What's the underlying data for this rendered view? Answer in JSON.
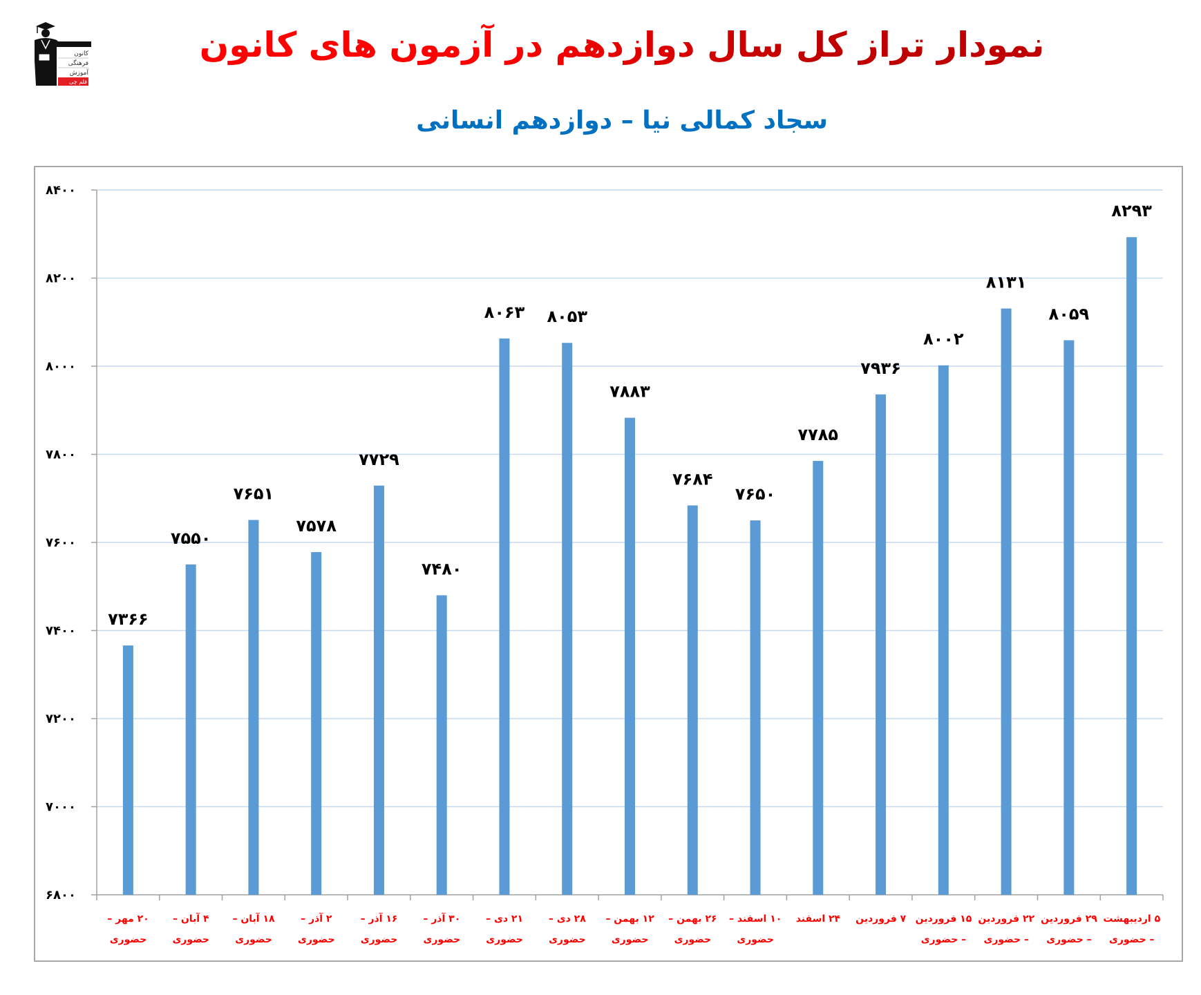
{
  "header": {
    "title": "نمودار تراز کل سال دوازدهم در آزمون های کانون",
    "subtitle": "سجاد کمالی نیا – دوازدهم انسانی",
    "logo": {
      "icon": "graduate-figure-icon",
      "lines": [
        "کانون",
        "فرهنگی",
        "آموزش",
        "قلم چی"
      ]
    }
  },
  "colors": {
    "title_dark": "#C00000",
    "title_bright": "#FF0000",
    "subtitle": "#0070C0",
    "bar": "#5B9BD5",
    "gridline": "#C5D9F1",
    "axis": "#A0A0A0",
    "x_label": "#FF0000",
    "data_label": "#000000"
  },
  "chart_data": {
    "type": "bar",
    "title": "نمودار تراز کل سال دوازدهم در آزمون های کانون",
    "subtitle": "سجاد کمالی نیا – دوازدهم انسانی",
    "xlabel": "",
    "ylabel": "",
    "ylim": [
      6800,
      8400
    ],
    "y_ticks": [
      6800,
      7000,
      7200,
      7400,
      7600,
      7800,
      8000,
      8200,
      8400
    ],
    "y_tick_labels": [
      "۶۸۰۰",
      "۷۰۰۰",
      "۷۲۰۰",
      "۷۴۰۰",
      "۷۶۰۰",
      "۷۸۰۰",
      "۸۰۰۰",
      "۸۲۰۰",
      "۸۴۰۰"
    ],
    "grid": true,
    "legend": "none",
    "categories": [
      "۲۰ مهر – حضوری",
      "۴ آبان – حضوری",
      "۱۸ آبان – حضوری",
      "۲ آذر – حضوری",
      "۱۶ آذر – حضوری",
      "۳۰ آذر – حضوری",
      "۲۱ دی – حضوری",
      "۲۸ دی – حضوری",
      "۱۲ بهمن – حضوری",
      "۲۶ بهمن – حضوری",
      "۱۰ اسفند – حضوری",
      "۲۴ اسفند",
      "۷ فروردین",
      "۱۵ فروردین – حضوری",
      "۲۲ فروردین – حضوری",
      "۲۹ فروردین – حضوری",
      "۵ اردیبهشت – حضوری"
    ],
    "category_lines": [
      [
        "۲۰ مهر –",
        "حضوری"
      ],
      [
        "۴ آبان –",
        "حضوری"
      ],
      [
        "۱۸ آبان –",
        "حضوری"
      ],
      [
        "۲ آذر –",
        "حضوری"
      ],
      [
        "۱۶ آذر –",
        "حضوری"
      ],
      [
        "۳۰ آذر –",
        "حضوری"
      ],
      [
        "۲۱ دی –",
        "حضوری"
      ],
      [
        "۲۸ دی –",
        "حضوری"
      ],
      [
        "۱۲ بهمن –",
        "حضوری"
      ],
      [
        "۲۶ بهمن –",
        "حضوری"
      ],
      [
        "۱۰ اسفند –",
        "حضوری"
      ],
      [
        "۲۴ اسفند",
        ""
      ],
      [
        "۷ فروردین",
        ""
      ],
      [
        "۱۵ فروردین",
        "– حضوری"
      ],
      [
        "۲۲ فروردین",
        "– حضوری"
      ],
      [
        "۲۹ فروردین",
        "– حضوری"
      ],
      [
        "۵ اردیبهشت",
        "– حضوری"
      ]
    ],
    "values": [
      7366,
      7550,
      7651,
      7578,
      7729,
      7480,
      8063,
      8053,
      7883,
      7684,
      7650,
      7785,
      7936,
      8002,
      8131,
      8059,
      8293
    ],
    "value_labels": [
      "۷۳۶۶",
      "۷۵۵۰",
      "۷۶۵۱",
      "۷۵۷۸",
      "۷۷۲۹",
      "۷۴۸۰",
      "۸۰۶۳",
      "۸۰۵۳",
      "۷۸۸۳",
      "۷۶۸۴",
      "۷۶۵۰",
      "۷۷۸۵",
      "۷۹۳۶",
      "۸۰۰۲",
      "۸۱۳۱",
      "۸۰۵۹",
      "۸۲۹۳"
    ]
  }
}
